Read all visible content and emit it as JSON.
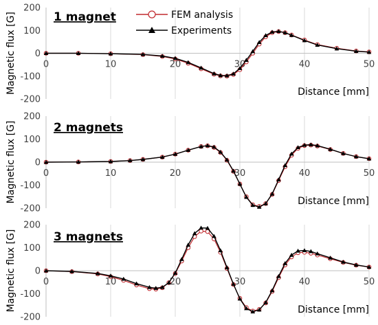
{
  "legend": {
    "items": [
      {
        "label": "FEM analysis",
        "color": "#c0282d",
        "marker": "circle-open"
      },
      {
        "label": "Experiments",
        "color": "#000000",
        "marker": "triangle-filled"
      }
    ]
  },
  "chart_data": [
    {
      "type": "line",
      "title": "1 magnet",
      "xlabel": "Distance [mm]",
      "ylabel": "Magnetic flux [G]",
      "xlim": [
        0,
        50
      ],
      "ylim": [
        -200,
        200
      ],
      "xticks": [
        "0",
        "10",
        "20",
        "30",
        "40",
        "50"
      ],
      "yticks": [
        "200",
        "100",
        "0",
        "-100",
        "-200"
      ],
      "grid": "vertical",
      "legend": "top-left",
      "series": [
        {
          "name": "FEM analysis",
          "color": "#c0282d",
          "marker": "circle-open",
          "x": [
            0,
            5,
            10,
            15,
            18,
            20,
            22,
            24,
            26,
            27,
            28,
            29,
            30,
            31,
            32,
            33,
            34,
            35,
            36,
            37,
            38,
            40,
            42,
            45,
            48,
            50
          ],
          "y": [
            0,
            0,
            -2,
            -6,
            -14,
            -25,
            -44,
            -68,
            -92,
            -99,
            -100,
            -93,
            -72,
            -38,
            0,
            40,
            72,
            90,
            95,
            90,
            80,
            58,
            38,
            22,
            10,
            6
          ]
        },
        {
          "name": "Experiments",
          "color": "#000000",
          "marker": "triangle-filled",
          "x": [
            0,
            5,
            10,
            15,
            18,
            20,
            22,
            24,
            26,
            27,
            28,
            29,
            30,
            31,
            32,
            33,
            34,
            35,
            36,
            37,
            38,
            40,
            42,
            45,
            48,
            50
          ],
          "y": [
            0,
            0,
            -2,
            -5,
            -12,
            -22,
            -40,
            -64,
            -89,
            -97,
            -98,
            -90,
            -66,
            -30,
            8,
            48,
            78,
            93,
            96,
            90,
            79,
            56,
            36,
            20,
            9,
            5
          ]
        }
      ]
    },
    {
      "type": "line",
      "title": "2 magnets",
      "xlabel": "Distance [mm]",
      "ylabel": "Magnetic flux [G]",
      "xlim": [
        0,
        50
      ],
      "ylim": [
        -200,
        200
      ],
      "xticks": [
        "0",
        "10",
        "20",
        "30",
        "40",
        "50"
      ],
      "yticks": [
        "200",
        "100",
        "0",
        "-100",
        "-200"
      ],
      "grid": "vertical",
      "series": [
        {
          "name": "FEM analysis",
          "color": "#c0282d",
          "marker": "circle-open",
          "x": [
            0,
            5,
            10,
            13,
            15,
            18,
            20,
            22,
            24,
            25,
            26,
            27,
            28,
            29,
            30,
            31,
            32,
            33,
            34,
            35,
            36,
            37,
            38,
            39,
            40,
            41,
            42,
            44,
            46,
            48,
            50
          ],
          "y": [
            0,
            1,
            3,
            7,
            12,
            22,
            35,
            52,
            68,
            71,
            64,
            42,
            8,
            -40,
            -95,
            -150,
            -185,
            -192,
            -180,
            -140,
            -80,
            -20,
            30,
            60,
            72,
            74,
            70,
            55,
            38,
            24,
            15
          ]
        },
        {
          "name": "Experiments",
          "color": "#000000",
          "marker": "triangle-filled",
          "x": [
            0,
            5,
            10,
            13,
            15,
            18,
            20,
            22,
            24,
            25,
            26,
            27,
            28,
            29,
            30,
            31,
            32,
            33,
            34,
            35,
            36,
            37,
            38,
            39,
            40,
            41,
            42,
            44,
            46,
            48,
            50
          ],
          "y": [
            0,
            1,
            3,
            7,
            12,
            22,
            35,
            52,
            68,
            72,
            66,
            44,
            10,
            -38,
            -95,
            -152,
            -187,
            -195,
            -180,
            -138,
            -76,
            -14,
            36,
            64,
            74,
            76,
            72,
            56,
            38,
            24,
            15
          ]
        }
      ]
    },
    {
      "type": "line",
      "title": "3 magnets",
      "xlabel": "Distance [mm]",
      "ylabel": "Magnetic flux [G]",
      "xlim": [
        0,
        50
      ],
      "ylim": [
        -200,
        200
      ],
      "xticks": [
        "0",
        "10",
        "20",
        "30",
        "40",
        "50"
      ],
      "yticks": [
        "200",
        "100",
        "0",
        "-100",
        "-200"
      ],
      "grid": "vertical",
      "series": [
        {
          "name": "FEM analysis",
          "color": "#c0282d",
          "marker": "circle-open",
          "x": [
            0,
            4,
            8,
            10,
            12,
            14,
            16,
            17,
            18,
            19,
            20,
            21,
            22,
            23,
            24,
            25,
            26,
            27,
            28,
            29,
            30,
            31,
            32,
            33,
            34,
            35,
            36,
            37,
            38,
            39,
            40,
            41,
            42,
            44,
            46,
            48,
            50
          ],
          "y": [
            0,
            -4,
            -14,
            -26,
            -42,
            -62,
            -78,
            -80,
            -74,
            -52,
            -12,
            42,
            100,
            148,
            172,
            170,
            138,
            80,
            10,
            -60,
            -120,
            -160,
            -175,
            -168,
            -140,
            -90,
            -30,
            25,
            60,
            78,
            80,
            76,
            68,
            52,
            36,
            24,
            16
          ]
        },
        {
          "name": "Experiments",
          "color": "#000000",
          "marker": "triangle-filled",
          "x": [
            0,
            4,
            8,
            10,
            12,
            14,
            16,
            17,
            18,
            19,
            20,
            21,
            22,
            23,
            24,
            25,
            26,
            27,
            28,
            29,
            30,
            31,
            32,
            33,
            34,
            35,
            36,
            37,
            38,
            39,
            40,
            41,
            42,
            44,
            46,
            48,
            50
          ],
          "y": [
            0,
            -3,
            -12,
            -22,
            -36,
            -56,
            -72,
            -76,
            -72,
            -52,
            -10,
            50,
            112,
            162,
            186,
            185,
            150,
            88,
            14,
            -58,
            -122,
            -164,
            -178,
            -170,
            -138,
            -86,
            -24,
            32,
            68,
            86,
            88,
            84,
            74,
            56,
            38,
            25,
            16
          ]
        }
      ]
    }
  ]
}
